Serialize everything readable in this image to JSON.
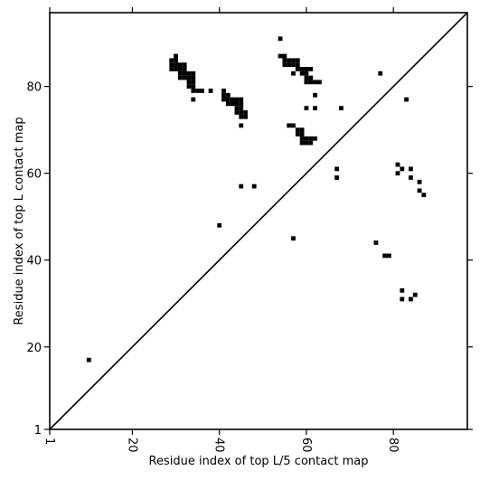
{
  "chart_data": {
    "type": "heatmap",
    "title": "",
    "xlabel": "Residue index of top L/5 contact map",
    "ylabel": "Residue index of top L contact map",
    "xlim": [
      1,
      97
    ],
    "ylim": [
      1,
      97
    ],
    "x_ticks": [
      1,
      20,
      40,
      60,
      80
    ],
    "y_ticks": [
      1,
      20,
      40,
      60,
      80
    ],
    "diagonal": true,
    "grid": false,
    "cell_color": "#000000",
    "cells": [
      [
        10,
        17
      ],
      [
        40,
        48
      ],
      [
        45,
        57
      ],
      [
        48,
        57
      ],
      [
        57,
        45
      ],
      [
        76,
        44
      ],
      [
        78,
        41
      ],
      [
        79,
        41
      ],
      [
        82,
        33
      ],
      [
        82,
        31
      ],
      [
        84,
        31
      ],
      [
        85,
        32
      ],
      [
        67,
        61
      ],
      [
        67,
        59
      ],
      [
        81,
        62
      ],
      [
        81,
        60
      ],
      [
        82,
        61
      ],
      [
        84,
        61
      ],
      [
        84,
        59
      ],
      [
        86,
        58
      ],
      [
        86,
        56
      ],
      [
        87,
        55
      ],
      [
        77,
        83
      ],
      [
        83,
        77
      ],
      [
        68,
        75
      ],
      [
        60,
        75
      ],
      [
        62,
        75
      ],
      [
        62,
        78
      ],
      [
        54,
        91
      ],
      [
        54,
        87
      ],
      [
        55,
        87
      ],
      [
        55,
        86
      ],
      [
        56,
        86
      ],
      [
        57,
        86
      ],
      [
        58,
        86
      ],
      [
        55,
        85
      ],
      [
        56,
        85
      ],
      [
        57,
        85
      ],
      [
        58,
        85
      ],
      [
        58,
        84
      ],
      [
        59,
        84
      ],
      [
        60,
        84
      ],
      [
        61,
        84
      ],
      [
        59,
        83
      ],
      [
        60,
        83
      ],
      [
        57,
        83
      ],
      [
        60,
        82
      ],
      [
        61,
        82
      ],
      [
        60,
        81
      ],
      [
        61,
        81
      ],
      [
        62,
        81
      ],
      [
        63,
        81
      ],
      [
        56,
        71
      ],
      [
        57,
        71
      ],
      [
        58,
        70
      ],
      [
        59,
        70
      ],
      [
        58,
        69
      ],
      [
        59,
        69
      ],
      [
        59,
        68
      ],
      [
        60,
        68
      ],
      [
        61,
        68
      ],
      [
        62,
        68
      ],
      [
        59,
        67
      ],
      [
        60,
        67
      ],
      [
        61,
        67
      ],
      [
        30,
        87
      ],
      [
        29,
        86
      ],
      [
        30,
        86
      ],
      [
        29,
        85
      ],
      [
        30,
        85
      ],
      [
        31,
        85
      ],
      [
        32,
        85
      ],
      [
        29,
        84
      ],
      [
        30,
        84
      ],
      [
        31,
        84
      ],
      [
        32,
        84
      ],
      [
        31,
        83
      ],
      [
        32,
        83
      ],
      [
        33,
        83
      ],
      [
        34,
        83
      ],
      [
        31,
        82
      ],
      [
        32,
        82
      ],
      [
        33,
        82
      ],
      [
        34,
        82
      ],
      [
        33,
        81
      ],
      [
        34,
        81
      ],
      [
        33,
        80
      ],
      [
        34,
        80
      ],
      [
        34,
        79
      ],
      [
        35,
        79
      ],
      [
        36,
        79
      ],
      [
        38,
        79
      ],
      [
        34,
        77
      ],
      [
        41,
        79
      ],
      [
        41,
        78
      ],
      [
        42,
        78
      ],
      [
        41,
        77
      ],
      [
        42,
        77
      ],
      [
        43,
        77
      ],
      [
        44,
        77
      ],
      [
        45,
        77
      ],
      [
        42,
        76
      ],
      [
        43,
        76
      ],
      [
        44,
        76
      ],
      [
        45,
        76
      ],
      [
        44,
        75
      ],
      [
        45,
        75
      ],
      [
        44,
        74
      ],
      [
        45,
        74
      ],
      [
        46,
        74
      ],
      [
        45,
        73
      ],
      [
        46,
        73
      ],
      [
        45,
        71
      ]
    ]
  }
}
